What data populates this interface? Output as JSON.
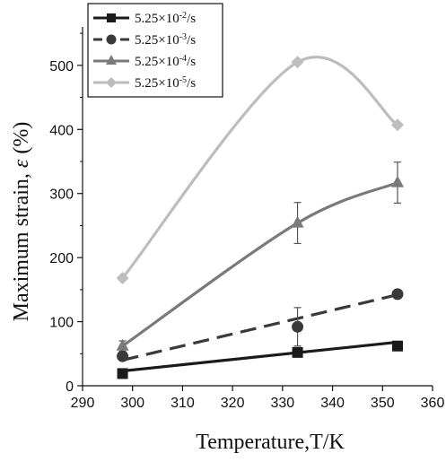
{
  "chart_data": {
    "type": "line",
    "xlabel": "Temperature,T/K",
    "ylabel_prefix": "Maximum strain, ",
    "ylabel_symbol": "ε",
    "ylabel_suffix": " (%)",
    "xlim": [
      290,
      360
    ],
    "ylim": [
      0,
      560
    ],
    "xticks": [
      290,
      300,
      310,
      320,
      330,
      340,
      350,
      360
    ],
    "yticks": [
      0,
      100,
      200,
      300,
      400,
      500
    ],
    "legend_position": "top-left",
    "series": [
      {
        "name": "5.25×10⁻²/s",
        "name_base": "5.25",
        "name_times": "×",
        "name_ten": "10",
        "name_exp": "-2",
        "name_unit": "/s",
        "marker": "square",
        "color": "#1a1a1a",
        "line_style": "solid",
        "smooth": false,
        "x": [
          298,
          333,
          353
        ],
        "y": [
          19,
          52,
          62
        ],
        "fit": [
          [
            298,
            23
          ],
          [
            353,
            68
          ]
        ],
        "error": []
      },
      {
        "name": "5.25×10⁻³/s",
        "name_base": "5.25",
        "name_times": "×",
        "name_ten": "10",
        "name_exp": "-3",
        "name_unit": "/s",
        "marker": "circle",
        "color": "#3a3a3a",
        "line_style": "dashed",
        "smooth": false,
        "x": [
          298,
          333,
          353
        ],
        "y": [
          46,
          92,
          143
        ],
        "fit": [
          [
            298,
            40
          ],
          [
            353,
            142
          ]
        ],
        "error": [
          0,
          30,
          0
        ]
      },
      {
        "name": "5.25×10⁻⁴/s",
        "name_base": "5.25",
        "name_times": "×",
        "name_ten": "10",
        "name_exp": "-4",
        "name_unit": "/s",
        "marker": "triangle",
        "color": "#7a7a7a",
        "line_style": "solid",
        "smooth": true,
        "x": [
          298,
          333,
          353
        ],
        "y": [
          62,
          254,
          317
        ],
        "fit": [],
        "error": [
          8,
          32,
          32
        ]
      },
      {
        "name": "5.25×10⁻⁵/s",
        "name_base": "5.25",
        "name_times": "×",
        "name_ten": "10",
        "name_exp": "-5",
        "name_unit": "/s",
        "marker": "diamond",
        "color": "#bdbdbd",
        "line_style": "solid",
        "smooth": true,
        "x": [
          298,
          333,
          353
        ],
        "y": [
          168,
          505,
          407
        ],
        "fit": [],
        "error": []
      }
    ]
  }
}
